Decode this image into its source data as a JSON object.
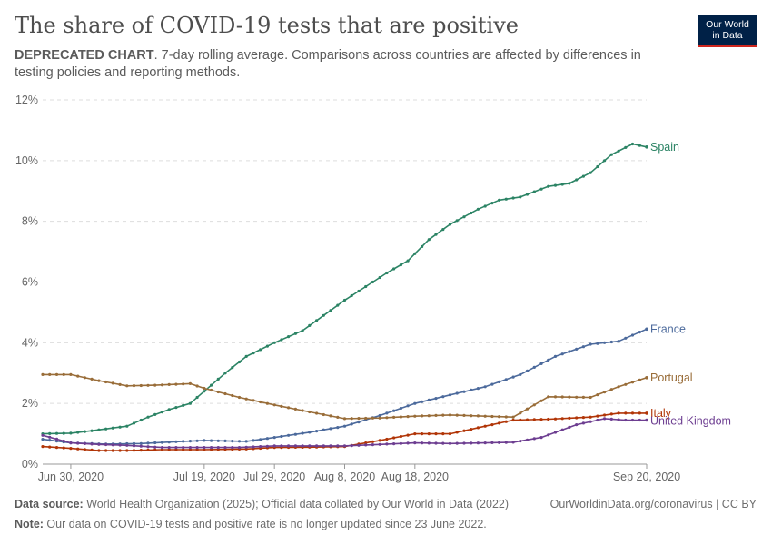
{
  "header": {
    "title": "The share of COVID-19 tests that are positive",
    "subtitle_bold": "DEPRECATED CHART",
    "subtitle_rest": ". 7-day rolling average. Comparisons across countries are affected by differences in testing policies and reporting methods.",
    "logo_line1": "Our World",
    "logo_line2": "in Data"
  },
  "footer": {
    "source_label": "Data source:",
    "source_text": " World Health Organization (2025); Official data collated by Our World in Data (2022)",
    "url_text": "OurWorldinData.org/coronavirus | CC BY",
    "note_label": "Note:",
    "note_text": " Our data on COVID-19 tests and positive rate is no longer updated since 23 June 2022."
  },
  "colors": {
    "Spain": "#2c8465",
    "France": "#4c6a9c",
    "Portugal": "#996d39",
    "Italy": "#b13507",
    "United Kingdom": "#6d3e91",
    "grid": "#dddddd",
    "axis": "#999999"
  },
  "chart_data": {
    "type": "line",
    "x_start": "2020-06-26",
    "x_end": "2020-09-20",
    "x_ticks": [
      {
        "date": "2020-06-30",
        "label": "Jun 30, 2020"
      },
      {
        "date": "2020-07-19",
        "label": "Jul 19, 2020"
      },
      {
        "date": "2020-07-29",
        "label": "Jul 29, 2020"
      },
      {
        "date": "2020-08-08",
        "label": "Aug 8, 2020"
      },
      {
        "date": "2020-08-18",
        "label": "Aug 18, 2020"
      },
      {
        "date": "2020-09-20",
        "label": "Sep 20, 2020"
      }
    ],
    "ylim": [
      0,
      12
    ],
    "y_ticks": [
      {
        "value": 0,
        "label": "0%"
      },
      {
        "value": 2,
        "label": "2%"
      },
      {
        "value": 4,
        "label": "4%"
      },
      {
        "value": 6,
        "label": "6%"
      },
      {
        "value": 8,
        "label": "8%"
      },
      {
        "value": 10,
        "label": "10%"
      },
      {
        "value": 12,
        "label": "12%"
      }
    ],
    "grid": true,
    "series": [
      {
        "name": "Spain",
        "points": [
          [
            "2020-06-26",
            1.0
          ],
          [
            "2020-06-30",
            1.02
          ],
          [
            "2020-07-03",
            1.1
          ],
          [
            "2020-07-08",
            1.25
          ],
          [
            "2020-07-11",
            1.55
          ],
          [
            "2020-07-14",
            1.8
          ],
          [
            "2020-07-17",
            2.0
          ],
          [
            "2020-07-19",
            2.4
          ],
          [
            "2020-07-22",
            3.0
          ],
          [
            "2020-07-25",
            3.55
          ],
          [
            "2020-07-29",
            4.0
          ],
          [
            "2020-08-02",
            4.4
          ],
          [
            "2020-08-05",
            4.9
          ],
          [
            "2020-08-08",
            5.4
          ],
          [
            "2020-08-11",
            5.85
          ],
          [
            "2020-08-14",
            6.3
          ],
          [
            "2020-08-17",
            6.7
          ],
          [
            "2020-08-20",
            7.4
          ],
          [
            "2020-08-23",
            7.9
          ],
          [
            "2020-08-27",
            8.4
          ],
          [
            "2020-08-30",
            8.7
          ],
          [
            "2020-09-02",
            8.8
          ],
          [
            "2020-09-06",
            9.15
          ],
          [
            "2020-09-09",
            9.25
          ],
          [
            "2020-09-12",
            9.6
          ],
          [
            "2020-09-15",
            10.2
          ],
          [
            "2020-09-18",
            10.55
          ],
          [
            "2020-09-20",
            10.45
          ]
        ]
      },
      {
        "name": "France",
        "points": [
          [
            "2020-06-26",
            0.82
          ],
          [
            "2020-06-30",
            0.7
          ],
          [
            "2020-07-05",
            0.66
          ],
          [
            "2020-07-10",
            0.68
          ],
          [
            "2020-07-15",
            0.74
          ],
          [
            "2020-07-19",
            0.78
          ],
          [
            "2020-07-25",
            0.75
          ],
          [
            "2020-07-29",
            0.88
          ],
          [
            "2020-08-03",
            1.05
          ],
          [
            "2020-08-08",
            1.25
          ],
          [
            "2020-08-13",
            1.6
          ],
          [
            "2020-08-18",
            2.0
          ],
          [
            "2020-08-23",
            2.28
          ],
          [
            "2020-08-28",
            2.55
          ],
          [
            "2020-09-02",
            2.95
          ],
          [
            "2020-09-07",
            3.55
          ],
          [
            "2020-09-12",
            3.95
          ],
          [
            "2020-09-16",
            4.05
          ],
          [
            "2020-09-20",
            4.45
          ]
        ]
      },
      {
        "name": "Portugal",
        "points": [
          [
            "2020-06-26",
            2.95
          ],
          [
            "2020-06-30",
            2.95
          ],
          [
            "2020-07-04",
            2.75
          ],
          [
            "2020-07-08",
            2.58
          ],
          [
            "2020-07-12",
            2.6
          ],
          [
            "2020-07-17",
            2.65
          ],
          [
            "2020-07-19",
            2.5
          ],
          [
            "2020-07-24",
            2.2
          ],
          [
            "2020-07-29",
            1.95
          ],
          [
            "2020-08-03",
            1.72
          ],
          [
            "2020-08-08",
            1.5
          ],
          [
            "2020-08-13",
            1.52
          ],
          [
            "2020-08-18",
            1.58
          ],
          [
            "2020-08-23",
            1.62
          ],
          [
            "2020-08-28",
            1.58
          ],
          [
            "2020-09-01",
            1.55
          ],
          [
            "2020-09-06",
            2.22
          ],
          [
            "2020-09-12",
            2.2
          ],
          [
            "2020-09-16",
            2.55
          ],
          [
            "2020-09-20",
            2.85
          ]
        ]
      },
      {
        "name": "Italy",
        "points": [
          [
            "2020-06-26",
            0.58
          ],
          [
            "2020-06-30",
            0.52
          ],
          [
            "2020-07-04",
            0.45
          ],
          [
            "2020-07-08",
            0.45
          ],
          [
            "2020-07-13",
            0.48
          ],
          [
            "2020-07-19",
            0.48
          ],
          [
            "2020-07-25",
            0.5
          ],
          [
            "2020-07-29",
            0.55
          ],
          [
            "2020-08-03",
            0.56
          ],
          [
            "2020-08-08",
            0.58
          ],
          [
            "2020-08-13",
            0.78
          ],
          [
            "2020-08-18",
            1.0
          ],
          [
            "2020-08-23",
            1.0
          ],
          [
            "2020-08-28",
            1.25
          ],
          [
            "2020-09-01",
            1.45
          ],
          [
            "2020-09-06",
            1.48
          ],
          [
            "2020-09-12",
            1.55
          ],
          [
            "2020-09-16",
            1.68
          ],
          [
            "2020-09-20",
            1.68
          ]
        ]
      },
      {
        "name": "United Kingdom",
        "points": [
          [
            "2020-06-26",
            0.95
          ],
          [
            "2020-06-30",
            0.7
          ],
          [
            "2020-07-04",
            0.65
          ],
          [
            "2020-07-08",
            0.62
          ],
          [
            "2020-07-13",
            0.55
          ],
          [
            "2020-07-19",
            0.55
          ],
          [
            "2020-07-24",
            0.55
          ],
          [
            "2020-07-29",
            0.6
          ],
          [
            "2020-08-03",
            0.6
          ],
          [
            "2020-08-08",
            0.6
          ],
          [
            "2020-08-13",
            0.65
          ],
          [
            "2020-08-18",
            0.7
          ],
          [
            "2020-08-23",
            0.68
          ],
          [
            "2020-08-28",
            0.7
          ],
          [
            "2020-09-01",
            0.72
          ],
          [
            "2020-09-05",
            0.88
          ],
          [
            "2020-09-10",
            1.3
          ],
          [
            "2020-09-14",
            1.5
          ],
          [
            "2020-09-17",
            1.45
          ],
          [
            "2020-09-20",
            1.45
          ]
        ]
      }
    ]
  }
}
